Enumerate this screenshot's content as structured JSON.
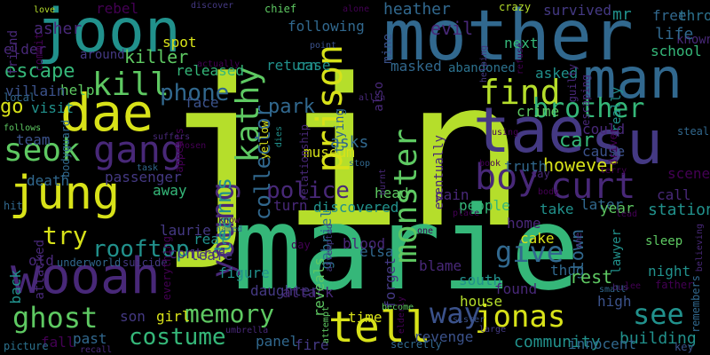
{
  "palette": {
    "lime": "#b5de2b",
    "yellow": "#d8e219",
    "green": "#5ec962",
    "teal": "#21918c",
    "seagreen": "#35b779",
    "blue": "#3b528b",
    "steel": "#31688e",
    "indigo": "#443983",
    "purple": "#482878",
    "darkpurple": "#440154",
    "slate": "#2c728e"
  },
  "words": [
    "jin",
    "marie",
    "mother",
    "joon",
    "tae",
    "su",
    "dae",
    "man",
    "jung",
    "wooah",
    "gang",
    "kathy",
    "young",
    "prison",
    "find",
    "boy",
    "curt",
    "seok",
    "kill",
    "brother",
    "tell",
    "memory",
    "ghost",
    "costume",
    "jonas",
    "police",
    "monster",
    "give",
    "try",
    "way",
    "see",
    "phone",
    "collector",
    "learns",
    "rooftop",
    "park",
    "escape",
    "killer",
    "however",
    "car",
    "released",
    "go",
    "elder",
    "asher",
    "heather",
    "evil",
    "survived",
    "mr",
    "free",
    "throw",
    "known",
    "life",
    "school",
    "following",
    "masked",
    "abandoned",
    "asked",
    "crime",
    "really",
    "could",
    "cause",
    "truth",
    "visit",
    "help",
    "villain",
    "team",
    "death",
    "passenger",
    "away",
    "laurie",
    "real",
    "old",
    "underworld",
    "suicide",
    "leafe",
    "figure",
    "daughter",
    "attack",
    "reveals",
    "gabriel",
    "elsa",
    "blood",
    "house",
    "south",
    "thug",
    "rest",
    "found",
    "town",
    "night",
    "lawyer",
    "building",
    "community",
    "revenge",
    "panel",
    "fire",
    "past",
    "fall",
    "picture",
    "key",
    "cake",
    "people",
    "discovered",
    "turn",
    "pain",
    "head",
    "eventually",
    "museum",
    "trying",
    "asks",
    "face",
    "spot",
    "return",
    "case",
    "next",
    "call",
    "station",
    "scene",
    "sleep",
    "take",
    "later",
    "year",
    "home",
    "son",
    "girl",
    "control",
    "back",
    "also",
    "mine",
    "rebel",
    "friend",
    "chief",
    "crazy",
    "love",
    "discover",
    "father",
    "steal",
    "innocent",
    "remembers",
    "sister",
    "believing",
    "time",
    "small",
    "lee",
    "bus",
    "high",
    "become",
    "attempt",
    "secretly",
    "umbrella",
    "recall",
    "large",
    "driver",
    "bodyguard",
    "relationship",
    "stop",
    "burnt",
    "book",
    "say",
    "body",
    "terry",
    "lead",
    "place",
    "using",
    "refuse",
    "helping",
    "guilty",
    "escaping",
    "actually",
    "allen",
    "point",
    "commit",
    "local",
    "follows",
    "hit",
    "attacked",
    "task",
    "named",
    "know",
    "day",
    "appears",
    "everything",
    "alone",
    "elderly",
    "attempted",
    "one",
    "around",
    "forget",
    "blame",
    "yellow",
    "dies",
    "suffers",
    "chosen",
    "one"
  ]
}
